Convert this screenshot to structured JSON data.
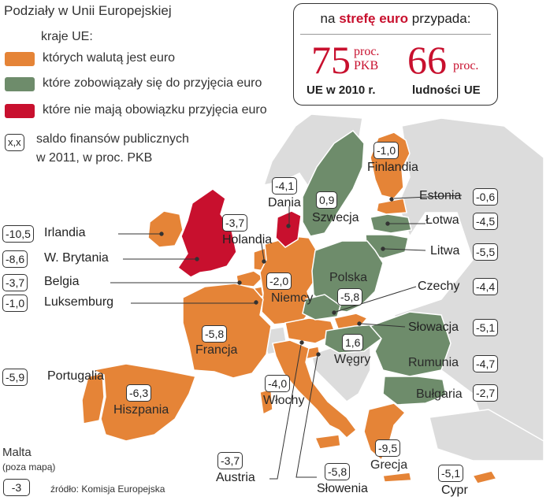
{
  "title": "Podziały w Unii Europejskiej",
  "legend": {
    "heading": "kraje UE:",
    "items": [
      {
        "label": "których walutą jest euro",
        "color": "#e58437"
      },
      {
        "label": "które zobowiązały się do przyjęcia euro",
        "color": "#6e8c6b"
      },
      {
        "label": "które nie mają obowiązku przyjęcia euro",
        "color": "#c8102e"
      }
    ],
    "box_sample": "x,x",
    "box_note_line1": "saldo finansów publicznych",
    "box_note_line2": "w 2011, w proc. PKB"
  },
  "header": {
    "title_prefix": "na ",
    "title_bold": "strefę euro",
    "title_suffix": " przypada:",
    "stat1": {
      "value": "75",
      "unit1": "proc.",
      "unit2": "PKB",
      "caption": "UE w 2010 r."
    },
    "stat2": {
      "value": "66",
      "unit1": "proc.",
      "caption": "ludności UE"
    }
  },
  "countries": {
    "irlandia": {
      "name": "Irlandia",
      "value": "-10,5",
      "group": "euro"
    },
    "wbrytania": {
      "name": "W. Brytania",
      "value": "-8,6",
      "group": "nie"
    },
    "belgia": {
      "name": "Belgia",
      "value": "-3,7",
      "group": "euro"
    },
    "luksemburg": {
      "name": "Luksemburg",
      "value": "-1,0",
      "group": "euro"
    },
    "portugalia": {
      "name": "Portugalia",
      "value": "-5,9",
      "group": "euro"
    },
    "hiszpania": {
      "name": "Hiszpania",
      "value": "-6,3",
      "group": "euro"
    },
    "francja": {
      "name": "Francja",
      "value": "-5,8",
      "group": "euro"
    },
    "holandia": {
      "name": "Holandia",
      "value": "-3,7",
      "group": "euro"
    },
    "dania": {
      "name": "Dania",
      "value": "-4,1",
      "group": "nie"
    },
    "szwecja": {
      "name": "Szwecja",
      "value": "0,9",
      "group": "zobow"
    },
    "finlandia": {
      "name": "Finlandia",
      "value": "-1,0",
      "group": "euro"
    },
    "estonia": {
      "name": "Estonia",
      "value": "-0,6",
      "group": "euro"
    },
    "lotwa": {
      "name": "Łotwa",
      "value": "-4,5",
      "group": "zobow"
    },
    "litwa": {
      "name": "Litwa",
      "value": "-5,5",
      "group": "zobow"
    },
    "niemcy": {
      "name": "Niemcy",
      "value": "-2,0",
      "group": "euro"
    },
    "polska": {
      "name": "Polska",
      "value": "-5,8",
      "group": "zobow"
    },
    "czechy": {
      "name": "Czechy",
      "value": "-4,4",
      "group": "zobow"
    },
    "slowacja": {
      "name": "Słowacja",
      "value": "-5,1",
      "group": "euro"
    },
    "wegry": {
      "name": "Węgry",
      "value": "1,6",
      "group": "zobow"
    },
    "rumunia": {
      "name": "Rumunia",
      "value": "-4,7",
      "group": "zobow"
    },
    "bulgaria": {
      "name": "Bułgaria",
      "value": "-2,7",
      "group": "zobow"
    },
    "wlochy": {
      "name": "Włochy",
      "value": "-4,0",
      "group": "euro"
    },
    "austria": {
      "name": "Austria",
      "value": "-3,7",
      "group": "euro"
    },
    "slowenia": {
      "name": "Słowenia",
      "value": "-5,8",
      "group": "euro"
    },
    "grecja": {
      "name": "Grecja",
      "value": "-9,5",
      "group": "euro"
    },
    "cypr": {
      "name": "Cypr",
      "value": "-5,1",
      "group": "euro"
    }
  },
  "malta": {
    "name": "Malta",
    "note": "(poza mapą)",
    "value": "-3"
  },
  "source": "źródło: Komisja Europejska"
}
